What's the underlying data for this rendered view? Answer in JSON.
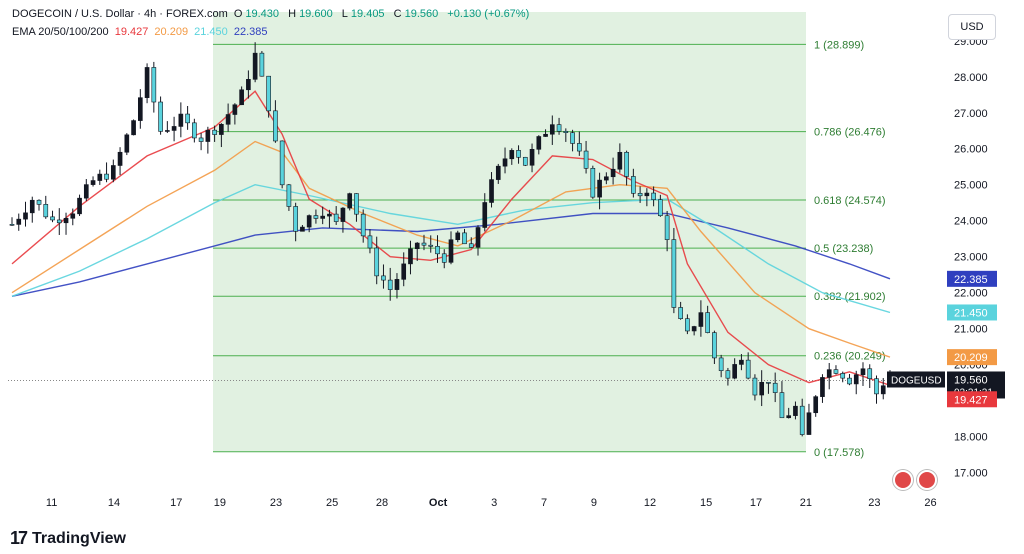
{
  "header": {
    "symbol": "DOGECOIN / U.S. Dollar · 4h · FOREX.com",
    "open_label": "O",
    "open": "19.430",
    "high_label": "H",
    "high": "19.600",
    "low_label": "L",
    "low": "19.405",
    "close_label": "C",
    "close": "19.560",
    "change": "+0.130 (+0.67%)",
    "ema_title": "EMA 20/50/100/200",
    "ema20": "19.427",
    "ema50": "20.209",
    "ema100": "21.450",
    "ema200": "22.385"
  },
  "currency_button": "USD",
  "branding": {
    "logo_mark": "17",
    "name": "TradingView"
  },
  "colors": {
    "up": "#131722",
    "down": "#131722",
    "wick": "#131722",
    "downbody": "#5ad3dd",
    "fib_zone": "#c8e6c9",
    "fib_line": "#4caf50",
    "ema20": "#e8383d",
    "ema50": "#f39a45",
    "ema100": "#5ad3dd",
    "ema200": "#2f3fbf"
  },
  "chart_data": {
    "type": "candlestick",
    "timeframe": "4h",
    "ylim": [
      16.6,
      29.8
    ],
    "y_ticks": [
      "29.000",
      "28.000",
      "27.000",
      "26.000",
      "25.000",
      "24.000",
      "23.000",
      "22.000",
      "21.000",
      "20.000",
      "19.000",
      "18.000",
      "17.000"
    ],
    "x_ticks": [
      "11",
      "14",
      "17",
      "19",
      "23",
      "25",
      "28",
      "Oct",
      "3",
      "7",
      "9",
      "12",
      "15",
      "17",
      "21",
      "23",
      "26"
    ],
    "fib_levels": [
      {
        "ratio": "1",
        "price": 28.899
      },
      {
        "ratio": "0.786",
        "price": 26.476
      },
      {
        "ratio": "0.618",
        "price": 24.574
      },
      {
        "ratio": "0.5",
        "price": 23.238
      },
      {
        "ratio": "0.382",
        "price": 21.902
      },
      {
        "ratio": "0.236",
        "price": 20.249
      },
      {
        "ratio": "0",
        "price": 17.578
      }
    ],
    "price_tags": [
      {
        "label": "22.385",
        "value": 22.385,
        "color": "#2f3fbf"
      },
      {
        "label": "21.450",
        "value": 21.45,
        "color": "#5ad3dd"
      },
      {
        "label": "20.209",
        "value": 20.209,
        "color": "#f39a45"
      },
      {
        "label": "19.560",
        "value": 19.56,
        "color": "#131722",
        "symbol": "DOGEUSD",
        "timer": "02:31:21"
      },
      {
        "label": "19.427",
        "value": 19.427,
        "color": "#e8383d"
      }
    ],
    "close_path": [
      [
        0,
        23.9
      ],
      [
        3,
        24.6
      ],
      [
        6,
        24.0
      ],
      [
        9,
        24.3
      ],
      [
        12,
        25.1
      ],
      [
        15,
        25.4
      ],
      [
        18,
        26.8
      ],
      [
        20,
        28.1
      ],
      [
        22,
        26.5
      ],
      [
        25,
        26.8
      ],
      [
        28,
        26.3
      ],
      [
        31,
        26.7
      ],
      [
        34,
        27.5
      ],
      [
        36,
        28.6
      ],
      [
        38,
        27.2
      ],
      [
        40,
        25.0
      ],
      [
        42,
        23.8
      ],
      [
        44,
        24.1
      ],
      [
        46,
        24.3
      ],
      [
        48,
        23.9
      ],
      [
        50,
        24.9
      ],
      [
        52,
        23.6
      ],
      [
        54,
        22.6
      ],
      [
        56,
        22.1
      ],
      [
        58,
        22.7
      ],
      [
        60,
        23.4
      ],
      [
        62,
        23.2
      ],
      [
        64,
        23.0
      ],
      [
        66,
        23.6
      ],
      [
        68,
        23.1
      ],
      [
        70,
        24.6
      ],
      [
        72,
        25.4
      ],
      [
        74,
        26.1
      ],
      [
        76,
        25.6
      ],
      [
        78,
        26.2
      ],
      [
        80,
        26.8
      ],
      [
        82,
        26.5
      ],
      [
        84,
        25.8
      ],
      [
        86,
        24.8
      ],
      [
        88,
        25.3
      ],
      [
        90,
        25.8
      ],
      [
        92,
        24.6
      ],
      [
        94,
        24.9
      ],
      [
        96,
        24.1
      ],
      [
        97,
        23.6
      ],
      [
        98,
        21.5
      ],
      [
        100,
        20.8
      ],
      [
        102,
        21.5
      ],
      [
        104,
        20.2
      ],
      [
        106,
        19.6
      ],
      [
        108,
        20.3
      ],
      [
        110,
        19.3
      ],
      [
        112,
        19.6
      ],
      [
        114,
        18.5
      ],
      [
        116,
        18.8
      ],
      [
        117,
        17.9
      ],
      [
        118,
        18.6
      ],
      [
        120,
        19.8
      ],
      [
        122,
        19.9
      ],
      [
        124,
        19.6
      ],
      [
        126,
        19.9
      ],
      [
        128,
        19.2
      ],
      [
        129,
        19.5
      ],
      [
        130,
        19.56
      ]
    ],
    "ema20": [
      [
        0,
        22.8
      ],
      [
        10,
        24.4
      ],
      [
        20,
        25.8
      ],
      [
        30,
        26.6
      ],
      [
        36,
        27.6
      ],
      [
        40,
        26.4
      ],
      [
        44,
        24.6
      ],
      [
        50,
        23.9
      ],
      [
        56,
        23.0
      ],
      [
        62,
        22.9
      ],
      [
        68,
        23.2
      ],
      [
        74,
        24.6
      ],
      [
        80,
        25.8
      ],
      [
        86,
        25.7
      ],
      [
        92,
        25.1
      ],
      [
        97,
        24.7
      ],
      [
        100,
        22.8
      ],
      [
        106,
        20.9
      ],
      [
        112,
        20.0
      ],
      [
        118,
        19.5
      ],
      [
        124,
        19.8
      ],
      [
        130,
        19.427
      ]
    ],
    "ema50": [
      [
        0,
        22.0
      ],
      [
        10,
        23.2
      ],
      [
        20,
        24.4
      ],
      [
        30,
        25.4
      ],
      [
        36,
        26.2
      ],
      [
        40,
        25.9
      ],
      [
        44,
        24.9
      ],
      [
        52,
        24.2
      ],
      [
        60,
        23.6
      ],
      [
        66,
        23.3
      ],
      [
        74,
        24.0
      ],
      [
        82,
        24.8
      ],
      [
        90,
        25.0
      ],
      [
        97,
        24.9
      ],
      [
        102,
        23.7
      ],
      [
        110,
        22.0
      ],
      [
        118,
        21.0
      ],
      [
        124,
        20.6
      ],
      [
        130,
        20.209
      ]
    ],
    "ema100": [
      [
        0,
        21.9
      ],
      [
        10,
        22.6
      ],
      [
        20,
        23.5
      ],
      [
        30,
        24.5
      ],
      [
        36,
        25.0
      ],
      [
        44,
        24.7
      ],
      [
        56,
        24.2
      ],
      [
        66,
        23.9
      ],
      [
        76,
        24.3
      ],
      [
        86,
        24.5
      ],
      [
        97,
        24.6
      ],
      [
        104,
        23.8
      ],
      [
        112,
        22.8
      ],
      [
        120,
        22.0
      ],
      [
        130,
        21.45
      ]
    ],
    "ema200": [
      [
        0,
        21.9
      ],
      [
        10,
        22.3
      ],
      [
        20,
        22.8
      ],
      [
        30,
        23.3
      ],
      [
        36,
        23.6
      ],
      [
        46,
        23.8
      ],
      [
        60,
        23.7
      ],
      [
        72,
        23.9
      ],
      [
        86,
        24.2
      ],
      [
        97,
        24.2
      ],
      [
        106,
        23.8
      ],
      [
        116,
        23.3
      ],
      [
        124,
        22.8
      ],
      [
        130,
        22.385
      ]
    ]
  }
}
